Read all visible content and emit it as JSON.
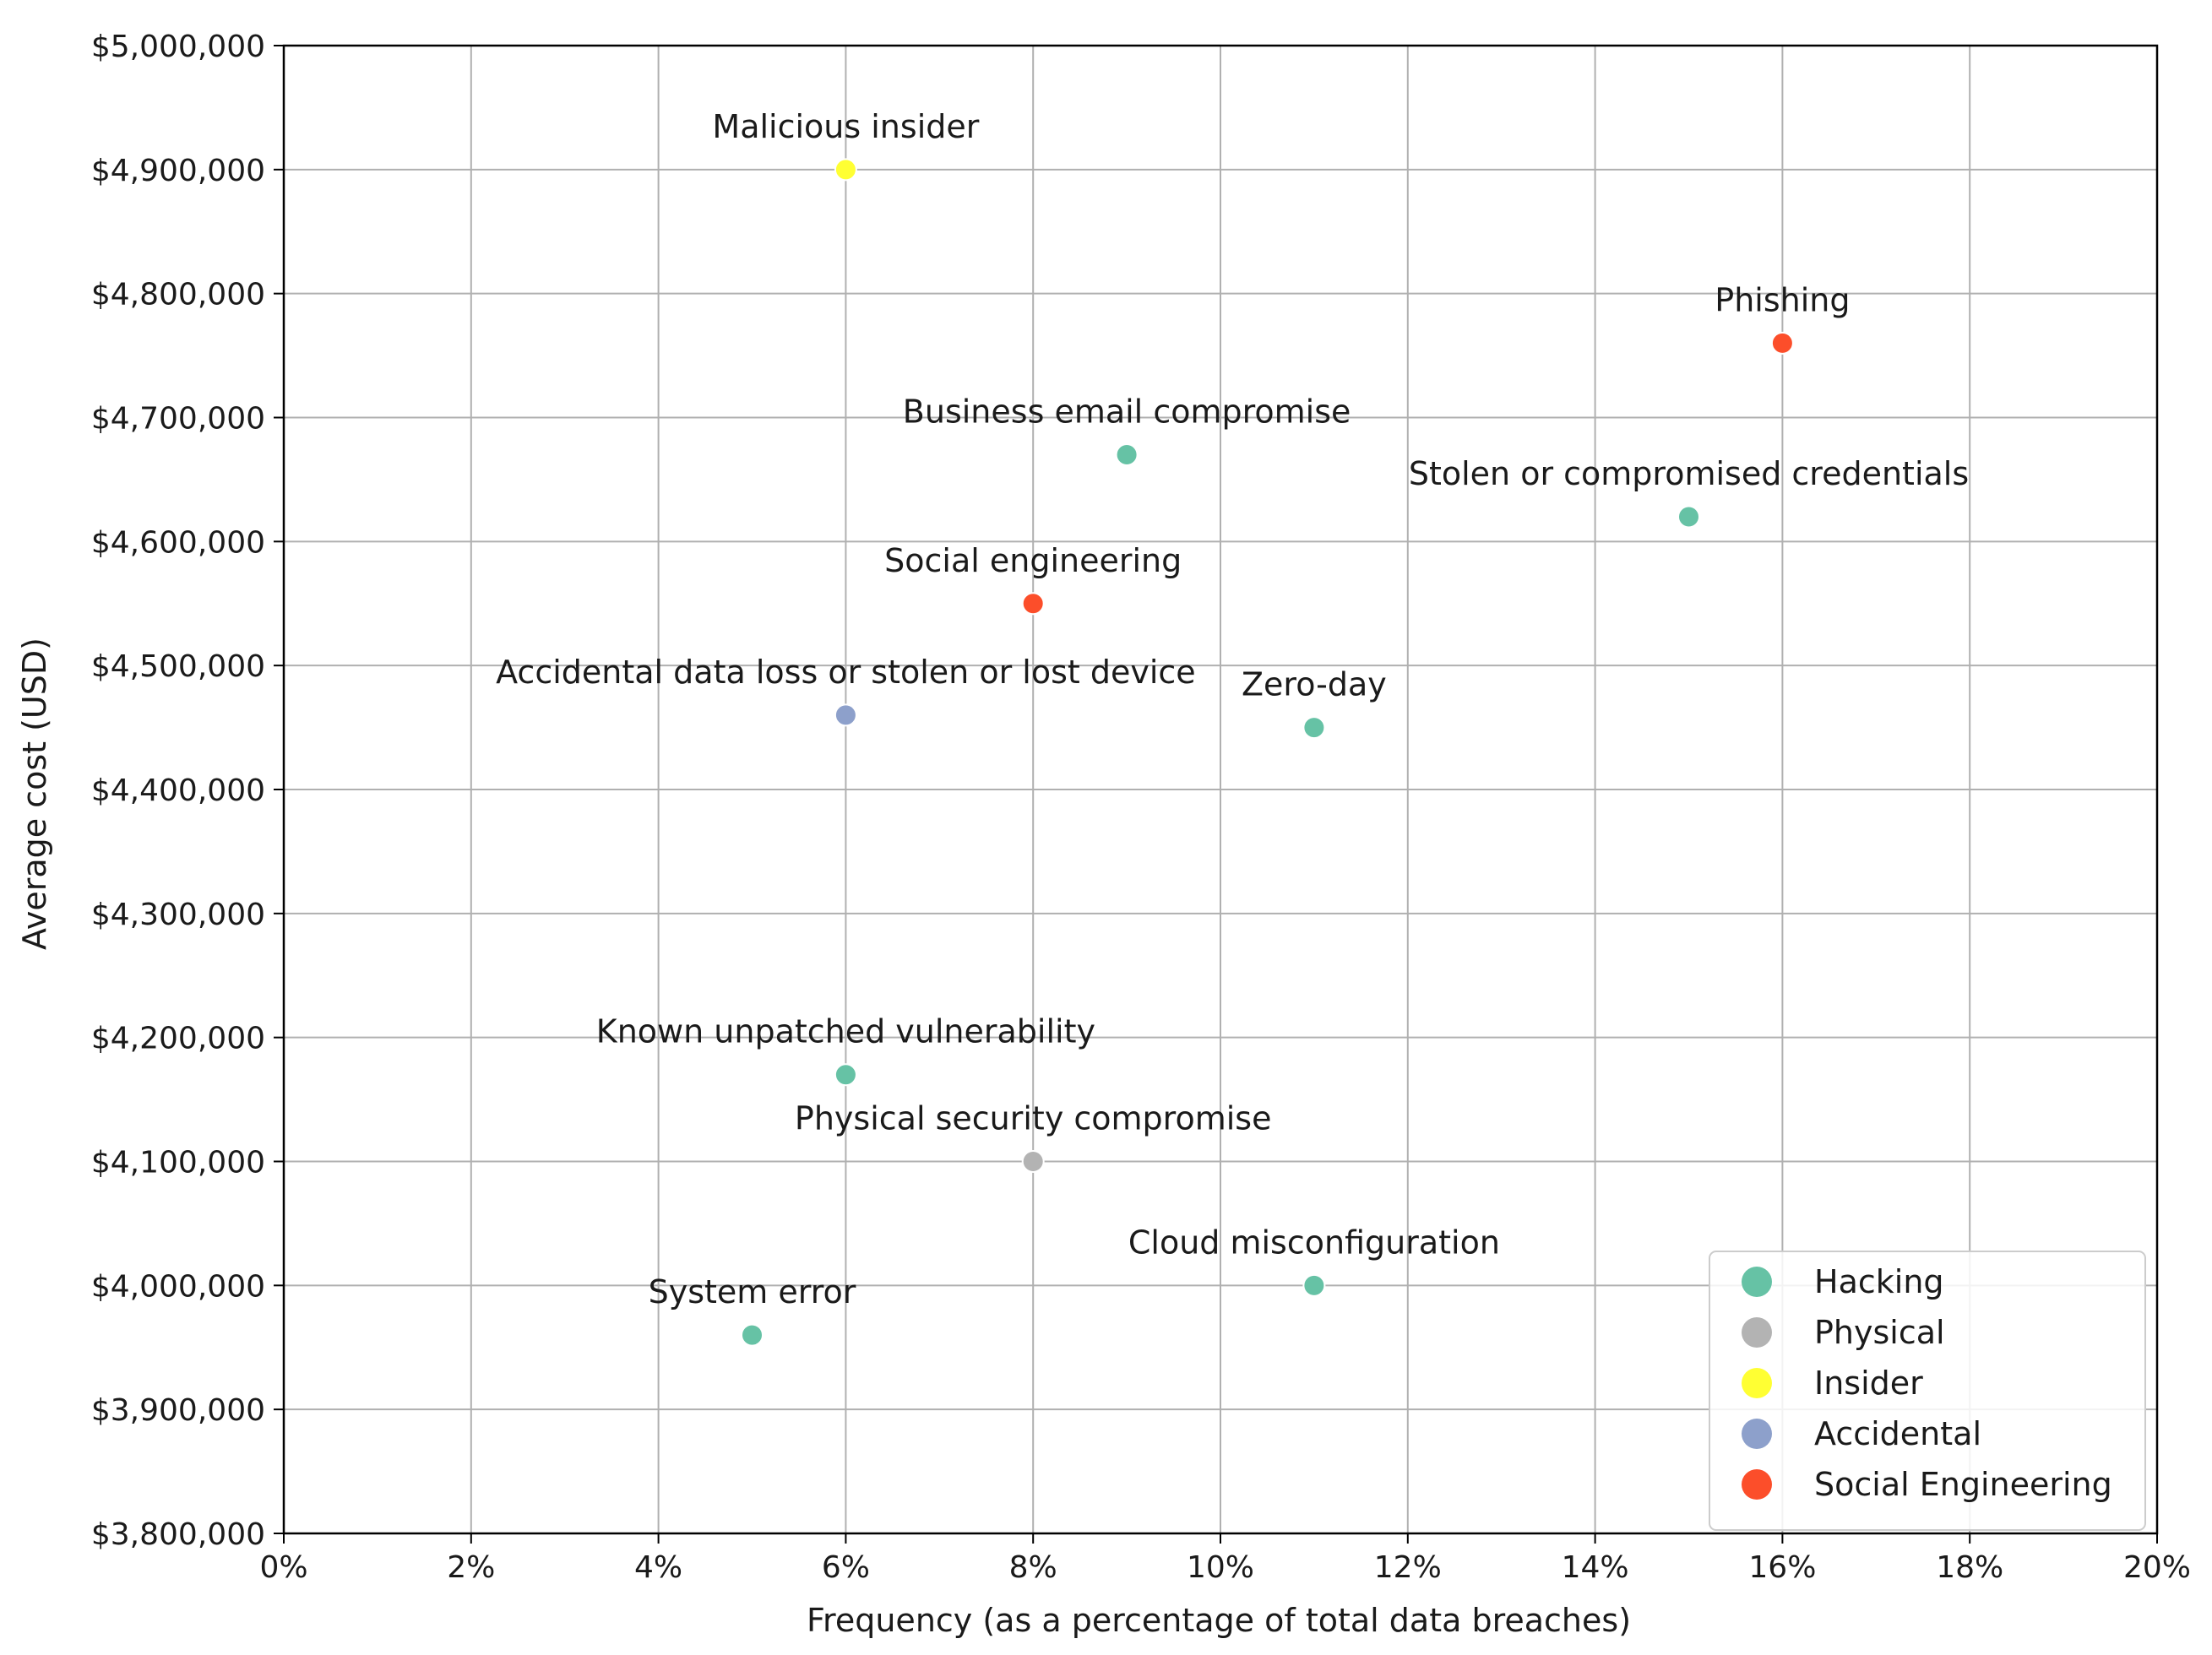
{
  "chart_data": {
    "type": "scatter",
    "title": "",
    "xlabel": "Frequency (as a percentage of total data breaches)",
    "ylabel": "Average cost (USD)",
    "xlim": [
      0,
      20
    ],
    "ylim": [
      3800000,
      5000000
    ],
    "x_ticks": [
      0,
      2,
      4,
      6,
      8,
      10,
      12,
      14,
      16,
      18,
      20
    ],
    "x_tick_labels": [
      "0%",
      "2%",
      "4%",
      "6%",
      "8%",
      "10%",
      "12%",
      "14%",
      "16%",
      "18%",
      "20%"
    ],
    "y_ticks": [
      3800000,
      3900000,
      4000000,
      4100000,
      4200000,
      4300000,
      4400000,
      4500000,
      4600000,
      4700000,
      4800000,
      4900000,
      5000000
    ],
    "y_tick_labels": [
      "$3,800,000",
      "$3,900,000",
      "$4,000,000",
      "$4,100,000",
      "$4,200,000",
      "$4,300,000",
      "$4,400,000",
      "$4,500,000",
      "$4,600,000",
      "$4,700,000",
      "$4,800,000",
      "$4,900,000",
      "$5,000,000"
    ],
    "grid": true,
    "legend_position": "bottom-right",
    "categories": [
      {
        "name": "Hacking",
        "color": "#66c2a5"
      },
      {
        "name": "Physical",
        "color": "#b3b3b3"
      },
      {
        "name": "Insider",
        "color": "#ffff33"
      },
      {
        "name": "Accidental",
        "color": "#8da0cb"
      },
      {
        "name": "Social Engineering",
        "color": "#fc4e2a"
      }
    ],
    "points": [
      {
        "label": "Malicious insider",
        "x": 6,
        "y": 4900000,
        "category": "Insider"
      },
      {
        "label": "Phishing",
        "x": 16,
        "y": 4760000,
        "category": "Social Engineering"
      },
      {
        "label": "Business email compromise",
        "x": 9,
        "y": 4670000,
        "category": "Hacking"
      },
      {
        "label": "Stolen or compromised credentials",
        "x": 15,
        "y": 4620000,
        "category": "Hacking"
      },
      {
        "label": "Social engineering",
        "x": 8,
        "y": 4550000,
        "category": "Social Engineering"
      },
      {
        "label": "Accidental data loss or stolen or lost device",
        "x": 6,
        "y": 4460000,
        "category": "Accidental"
      },
      {
        "label": "Zero-day",
        "x": 11,
        "y": 4450000,
        "category": "Hacking"
      },
      {
        "label": "Known unpatched vulnerability",
        "x": 6,
        "y": 4170000,
        "category": "Hacking"
      },
      {
        "label": "Physical security compromise",
        "x": 8,
        "y": 4100000,
        "category": "Physical"
      },
      {
        "label": "Cloud misconfiguration",
        "x": 11,
        "y": 4000000,
        "category": "Hacking"
      },
      {
        "label": "System error",
        "x": 5,
        "y": 3960000,
        "category": "Hacking"
      }
    ]
  }
}
